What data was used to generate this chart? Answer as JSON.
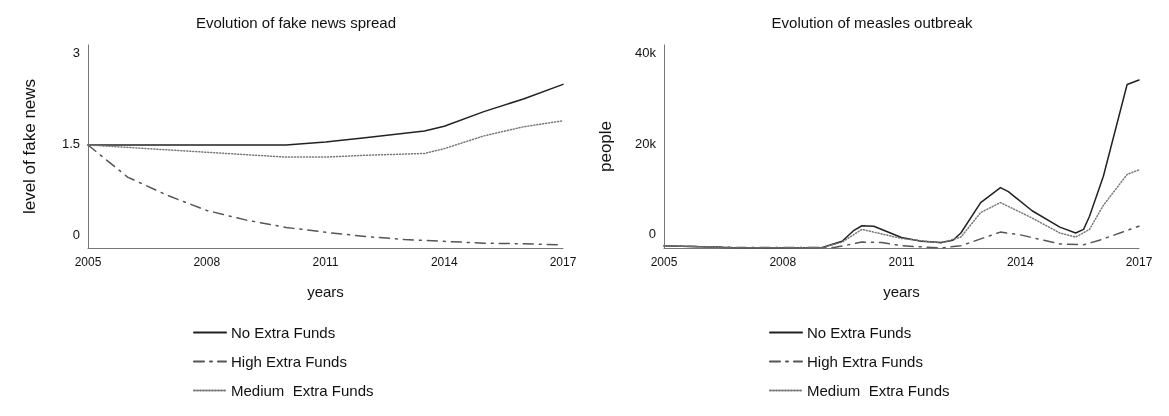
{
  "chart_data": [
    {
      "type": "line",
      "title": "Evolution of fake news spread",
      "xlabel": "years",
      "ylabel": "level of fake news",
      "xlim": [
        2005,
        2017
      ],
      "xticks": [
        2005,
        2008,
        2011,
        2014,
        2017
      ],
      "ylim": [
        -0.23,
        3.12
      ],
      "yticks": [
        0,
        1.5,
        3
      ],
      "grid": false,
      "legend": "bottom",
      "marker": "none",
      "series": [
        {
          "name": "No Extra Funds",
          "color": "#222222",
          "line_style": "solid",
          "x": [
            2005,
            2008,
            2010,
            2011,
            2012,
            2013.5,
            2014,
            2015,
            2016,
            2017
          ],
          "values": [
            1.47,
            1.47,
            1.47,
            1.52,
            1.59,
            1.7,
            1.78,
            2.02,
            2.23,
            2.47
          ]
        },
        {
          "name": "High Extra Funds",
          "color": "#555555",
          "line_style": "dashed",
          "x": [
            2005,
            2006,
            2007,
            2008,
            2009,
            2010,
            2011,
            2012,
            2013,
            2014,
            2015,
            2016,
            2017
          ],
          "values": [
            1.47,
            0.94,
            0.64,
            0.39,
            0.23,
            0.11,
            0.03,
            -0.04,
            -0.09,
            -0.12,
            -0.15,
            -0.16,
            -0.18
          ]
        },
        {
          "name": "Medium  Extra Funds",
          "color": "#777777",
          "line_style": "dotted",
          "x": [
            2005,
            2008,
            2010,
            2011,
            2012,
            2013.5,
            2014,
            2015,
            2016,
            2017
          ],
          "values": [
            1.47,
            1.35,
            1.27,
            1.27,
            1.3,
            1.33,
            1.41,
            1.62,
            1.77,
            1.87
          ]
        }
      ]
    },
    {
      "type": "line",
      "title": "Evolution of measles outbreak",
      "xlabel": "years",
      "ylabel": "people",
      "xlim": [
        2005,
        2017
      ],
      "xticks": [
        2005,
        2008,
        2011,
        2014,
        2017
      ],
      "ylim": [
        -3100,
        41600
      ],
      "yticks": [
        0,
        {
          "value": 20000,
          "label": "20k"
        },
        {
          "value": 40000,
          "label": "40k"
        }
      ],
      "grid": false,
      "legend": "bottom",
      "marker": "none",
      "series": [
        {
          "name": "No Extra Funds",
          "color": "#222222",
          "line_style": "solid",
          "x": [
            2005,
            2007,
            2009,
            2009.5,
            2009.8,
            2010,
            2010.3,
            2011,
            2011.5,
            2012,
            2012.3,
            2012.5,
            2013,
            2013.5,
            2013.7,
            2014.3,
            2015,
            2015.4,
            2015.6,
            2015.75,
            2016.1,
            2016.7,
            2017
          ],
          "values": [
            -2600,
            -3100,
            -3000,
            -1600,
            800,
            1800,
            1700,
            -800,
            -1600,
            -1900,
            -1400,
            200,
            6900,
            10200,
            9300,
            5100,
            1500,
            200,
            1000,
            3900,
            12700,
            32900,
            33900
          ]
        },
        {
          "name": "High Extra Funds",
          "color": "#555555",
          "line_style": "dashed",
          "x": [
            2005,
            2007,
            2009.3,
            2010,
            2010.5,
            2011,
            2012,
            2012.5,
            2013.5,
            2014,
            2015,
            2015.6,
            2016,
            2017
          ],
          "values": [
            -2600,
            -3000,
            -3000,
            -1800,
            -1900,
            -2600,
            -3100,
            -2600,
            400,
            -200,
            -2200,
            -2400,
            -1400,
            1700
          ]
        },
        {
          "name": "Medium  Extra Funds",
          "color": "#777777",
          "line_style": "dotted",
          "x": [
            2005,
            2007,
            2009,
            2009.5,
            2010,
            2011,
            2012,
            2012.5,
            2013,
            2013.5,
            2014.3,
            2015,
            2015.4,
            2015.75,
            2016.1,
            2016.7,
            2017
          ],
          "values": [
            -2600,
            -3100,
            -3000,
            -1800,
            1000,
            -1000,
            -2000,
            -700,
            4700,
            6900,
            3500,
            200,
            -700,
            1000,
            6300,
            13100,
            14100
          ]
        }
      ]
    }
  ]
}
